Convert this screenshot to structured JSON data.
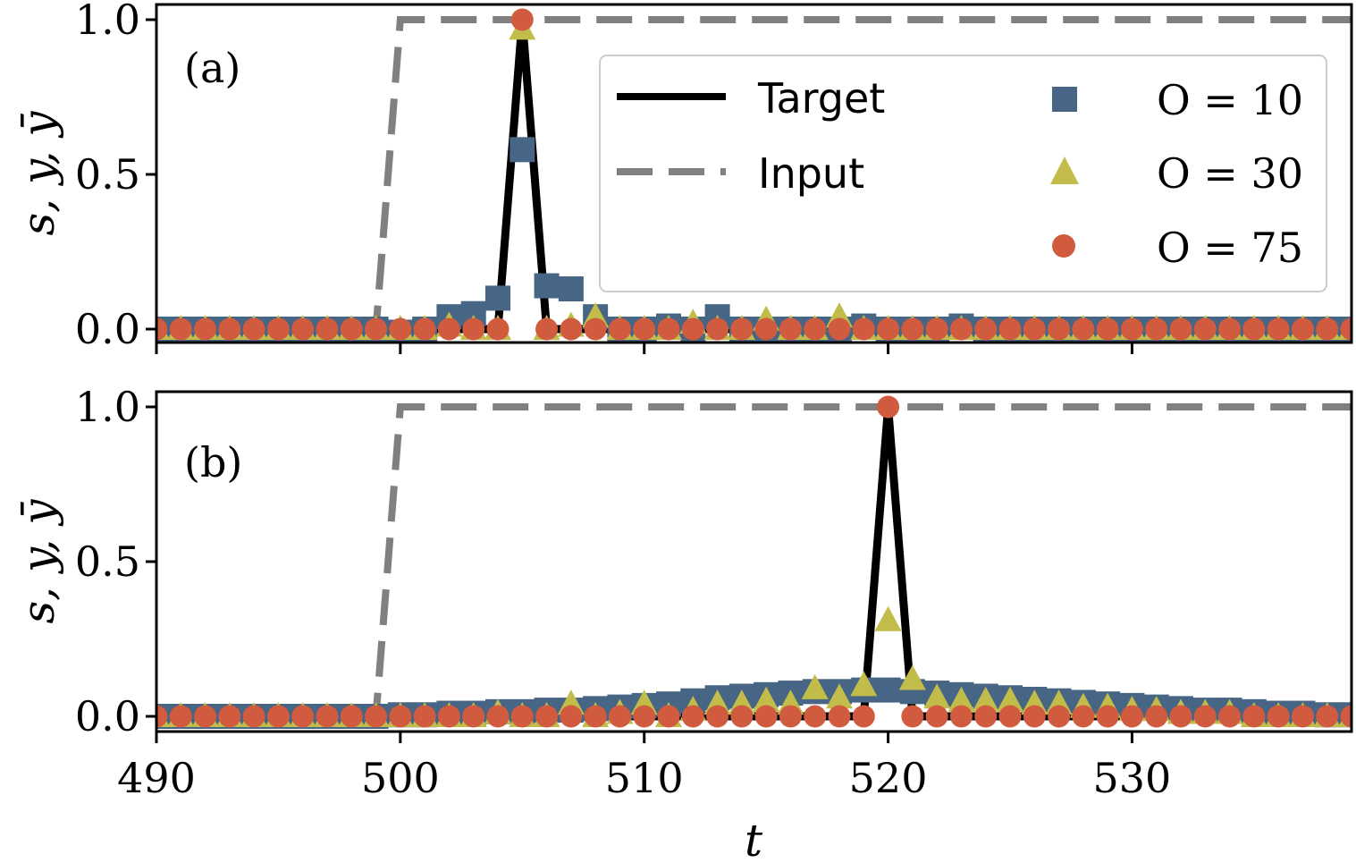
{
  "colors": {
    "target": "#000000",
    "input": "#808080",
    "o10": "#476584",
    "o30": "#c2bd4a",
    "o75": "#d05b3e"
  },
  "chart_data": [
    {
      "panel_label": "(a)",
      "type": "line",
      "ylabel": "s, y, ȳ",
      "xlim": [
        490,
        539
      ],
      "ylim": [
        -0.05,
        1.05
      ],
      "yticks": [
        "0.0",
        "0.5",
        "1.0"
      ],
      "target_peak": 505,
      "input_step": {
        "t": [
          499,
          500
        ],
        "y": [
          0,
          1
        ]
      },
      "series": [
        {
          "name": "O = 10",
          "marker": "square",
          "x": [
            490,
            491,
            492,
            493,
            494,
            495,
            496,
            497,
            498,
            499,
            500,
            501,
            502,
            503,
            504,
            505,
            506,
            507,
            508,
            509,
            510,
            511,
            512,
            513,
            514,
            515,
            516,
            517,
            518,
            519,
            520,
            521,
            522,
            523,
            524,
            525,
            526,
            527,
            528,
            529,
            530,
            531,
            532,
            533,
            534,
            535,
            536,
            537,
            538,
            539
          ],
          "y": [
            0,
            0,
            0,
            0,
            0,
            0,
            0,
            0,
            0,
            0,
            -0.01,
            0,
            0.04,
            0.05,
            0.1,
            0.58,
            0.14,
            0.13,
            0.04,
            0,
            0,
            0.01,
            0,
            0.04,
            0,
            0,
            0,
            0,
            0,
            0.01,
            0,
            0,
            0,
            0.01,
            0,
            0,
            0,
            0,
            0,
            0,
            0,
            0,
            0,
            0,
            0,
            0,
            0,
            0,
            0,
            0
          ]
        },
        {
          "name": "O = 30",
          "marker": "triangle",
          "x": [
            490,
            491,
            492,
            493,
            494,
            495,
            496,
            497,
            498,
            499,
            500,
            501,
            502,
            503,
            504,
            505,
            506,
            507,
            508,
            509,
            510,
            511,
            512,
            513,
            514,
            515,
            516,
            517,
            518,
            519,
            520,
            521,
            522,
            523,
            524,
            525,
            526,
            527,
            528,
            529,
            530,
            531,
            532,
            533,
            534,
            535,
            536,
            537,
            538,
            539
          ],
          "y": [
            0,
            0,
            0,
            0,
            0,
            0,
            0,
            0,
            0,
            0,
            0,
            0,
            0.01,
            0,
            0,
            0.97,
            0,
            0.01,
            0.04,
            0,
            0,
            0,
            0.02,
            0,
            0,
            0.03,
            0,
            0,
            0.04,
            0,
            0,
            0,
            0,
            0,
            0,
            0,
            0,
            0,
            0,
            0,
            0,
            0,
            0,
            0,
            0,
            0,
            0,
            0,
            0,
            0
          ]
        },
        {
          "name": "O = 75",
          "marker": "circle",
          "x": [
            490,
            491,
            492,
            493,
            494,
            495,
            496,
            497,
            498,
            499,
            500,
            501,
            502,
            503,
            504,
            505,
            506,
            507,
            508,
            509,
            510,
            511,
            512,
            513,
            514,
            515,
            516,
            517,
            518,
            519,
            520,
            521,
            522,
            523,
            524,
            525,
            526,
            527,
            528,
            529,
            530,
            531,
            532,
            533,
            534,
            535,
            536,
            537,
            538,
            539
          ],
          "y": [
            0,
            0,
            0,
            0,
            0,
            0,
            0,
            0,
            0,
            0,
            0,
            0,
            0,
            0,
            0,
            1.0,
            0,
            0,
            0,
            0,
            0,
            0,
            0,
            0,
            0,
            0,
            0,
            0,
            0,
            0,
            0,
            0,
            0,
            0,
            0,
            0,
            0,
            0,
            0,
            0,
            0,
            0,
            0,
            0,
            0,
            0,
            0,
            0,
            0,
            0
          ]
        }
      ]
    },
    {
      "panel_label": "(b)",
      "type": "line",
      "ylabel": "s, y, ȳ",
      "xlabel": "t",
      "xlim": [
        490,
        539
      ],
      "ylim": [
        -0.05,
        1.05
      ],
      "xticks": [
        "490",
        "500",
        "510",
        "520",
        "530"
      ],
      "yticks": [
        "0.0",
        "0.5",
        "1.0"
      ],
      "target_peak": 520,
      "input_step": {
        "t": [
          499,
          500
        ],
        "y": [
          0,
          1
        ]
      },
      "series": [
        {
          "name": "O = 10",
          "marker": "square",
          "x": [
            490,
            491,
            492,
            493,
            494,
            495,
            496,
            497,
            498,
            499,
            500,
            501,
            502,
            503,
            504,
            505,
            506,
            507,
            508,
            509,
            510,
            511,
            512,
            513,
            514,
            515,
            516,
            517,
            518,
            519,
            520,
            521,
            522,
            523,
            524,
            525,
            526,
            527,
            528,
            529,
            530,
            531,
            532,
            533,
            534,
            535,
            536,
            537,
            538,
            539
          ],
          "y": [
            0,
            0,
            0,
            0,
            0,
            0,
            0,
            0,
            0,
            0,
            0.005,
            0.005,
            0.01,
            0.01,
            0.015,
            0.015,
            0.02,
            0.02,
            0.025,
            0.03,
            0.035,
            0.04,
            0.05,
            0.06,
            0.065,
            0.07,
            0.075,
            0.08,
            0.08,
            0.085,
            0.085,
            0.08,
            0.075,
            0.07,
            0.065,
            0.06,
            0.055,
            0.05,
            0.045,
            0.04,
            0.035,
            0.03,
            0.025,
            0.02,
            0.02,
            0.015,
            0.01,
            0.01,
            0.005,
            0.005
          ]
        },
        {
          "name": "O = 30",
          "marker": "triangle",
          "x": [
            490,
            491,
            492,
            493,
            494,
            495,
            496,
            497,
            498,
            499,
            500,
            501,
            502,
            503,
            504,
            505,
            506,
            507,
            508,
            509,
            510,
            511,
            512,
            513,
            514,
            515,
            516,
            517,
            518,
            519,
            520,
            521,
            522,
            523,
            524,
            525,
            526,
            527,
            528,
            529,
            530,
            531,
            532,
            533,
            534,
            535,
            536,
            537,
            538,
            539
          ],
          "y": [
            0,
            0,
            0,
            0,
            0,
            0,
            0,
            0,
            0,
            0,
            0,
            0,
            0,
            0,
            0.01,
            0,
            0,
            0.04,
            0,
            0.01,
            0.04,
            0,
            0.02,
            0.04,
            0.04,
            0.05,
            0.04,
            0.09,
            0.06,
            0.1,
            0.31,
            0.12,
            0.06,
            0.05,
            0.05,
            0.05,
            0.04,
            0.04,
            0.03,
            0.03,
            0.02,
            0.02,
            0.01,
            0.01,
            0.01,
            0,
            0,
            0,
            0,
            0
          ]
        },
        {
          "name": "O = 75",
          "marker": "circle",
          "x": [
            490,
            491,
            492,
            493,
            494,
            495,
            496,
            497,
            498,
            499,
            500,
            501,
            502,
            503,
            504,
            505,
            506,
            507,
            508,
            509,
            510,
            511,
            512,
            513,
            514,
            515,
            516,
            517,
            518,
            519,
            520,
            521,
            522,
            523,
            524,
            525,
            526,
            527,
            528,
            529,
            530,
            531,
            532,
            533,
            534,
            535,
            536,
            537,
            538,
            539
          ],
          "y": [
            0,
            0,
            0,
            0,
            0,
            0,
            0,
            0,
            0,
            0,
            0,
            0,
            0,
            0,
            0,
            0,
            0,
            0,
            0,
            0,
            0,
            0,
            0,
            0,
            0,
            0,
            0,
            0,
            0,
            0,
            1.0,
            0,
            0,
            0,
            0,
            0,
            0,
            0,
            0,
            0,
            0,
            0,
            0,
            0,
            0,
            0,
            0,
            0,
            0,
            0
          ]
        }
      ]
    }
  ],
  "legend": {
    "placement": "top-right of panel (a)",
    "target_label": "Target",
    "input_label": "Input",
    "o10_label": "O = 10",
    "o30_label": "O = 30",
    "o75_label": "O = 75"
  }
}
